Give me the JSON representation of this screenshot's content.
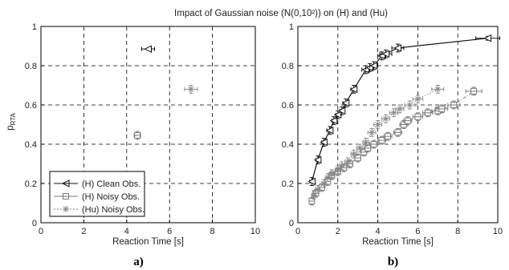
{
  "title": "Impact of Gaussian noise (N(0,10²)) on (H) and (Hu)",
  "ylabel_main": "p",
  "ylabel_sub": "RTA",
  "colors": {
    "clean": "#111111",
    "noisy_h": "#7a7a7a",
    "noisy_hu": "#8a8a8a",
    "grid": "#000000"
  },
  "legend": {
    "items": [
      {
        "marker": "left-triangle",
        "label": "(H) Clean Obs."
      },
      {
        "marker": "square",
        "label": "(H) Noisy Obs."
      },
      {
        "marker": "asterisk",
        "label": "(Hu) Noisy Obs."
      }
    ]
  },
  "chart_data": [
    {
      "type": "scatter",
      "panel_label": "a)",
      "xlabel": "Reaction Time [s]",
      "ylabel": "p_RTA",
      "xlim": [
        0,
        10
      ],
      "ylim": [
        0,
        1
      ],
      "xticks": [
        "0",
        "2",
        "4",
        "6",
        "8",
        "10"
      ],
      "yticks": [
        "0",
        "0.2",
        "0.4",
        "0.6",
        "0.8",
        "1"
      ],
      "grid": true,
      "legend_position": "bottom-left",
      "series": [
        {
          "name": "(H) Clean Obs.",
          "marker": "left-triangle",
          "points": [
            {
              "x": 5.0,
              "y": 0.885,
              "xerr": 0.3,
              "yerr": 0.0
            }
          ]
        },
        {
          "name": "(H) Noisy Obs.",
          "marker": "square",
          "points": [
            {
              "x": 4.5,
              "y": 0.445,
              "xerr": 0.15,
              "yerr": 0.02
            }
          ]
        },
        {
          "name": "(Hu) Noisy Obs.",
          "marker": "asterisk",
          "points": [
            {
              "x": 7.0,
              "y": 0.68,
              "xerr": 0.3,
              "yerr": 0.02
            }
          ]
        }
      ]
    },
    {
      "type": "line",
      "panel_label": "b)",
      "xlabel": "Reaction Time [s]",
      "ylabel": "",
      "xlim": [
        0,
        10
      ],
      "ylim": [
        0,
        1
      ],
      "xticks": [
        "0",
        "2",
        "4",
        "6",
        "8",
        "10"
      ],
      "yticks": [
        "0",
        "0.2",
        "0.4",
        "0.6",
        "0.8",
        "1"
      ],
      "grid": true,
      "series": [
        {
          "name": "(H) Clean Obs.",
          "marker": "left-triangle",
          "linestyle": "solid",
          "x": [
            0.7,
            1.0,
            1.3,
            1.6,
            1.8,
            2.0,
            2.2,
            2.4,
            2.8,
            3.4,
            3.6,
            3.8,
            4.2,
            4.4,
            5.0,
            9.5
          ],
          "y": [
            0.21,
            0.32,
            0.41,
            0.47,
            0.52,
            0.55,
            0.57,
            0.61,
            0.68,
            0.78,
            0.79,
            0.8,
            0.85,
            0.86,
            0.89,
            0.94
          ],
          "xerr": [
            0.1,
            0.1,
            0.1,
            0.15,
            0.1,
            0.1,
            0.1,
            0.15,
            0.15,
            0.2,
            0.2,
            0.2,
            0.2,
            0.3,
            0.3,
            0.6
          ],
          "yerr": [
            0.02,
            0.02,
            0.02,
            0.02,
            0.02,
            0.02,
            0.02,
            0.02,
            0.02,
            0.02,
            0.02,
            0.02,
            0.02,
            0.02,
            0.02,
            0.01
          ]
        },
        {
          "name": "(H) Noisy Obs.",
          "marker": "square",
          "linestyle": "dashdot",
          "x": [
            0.7,
            0.9,
            1.2,
            1.5,
            1.7,
            2.0,
            2.3,
            2.6,
            3.0,
            3.3,
            3.5,
            3.8,
            4.2,
            4.5,
            5.0,
            5.3,
            5.5,
            6.0,
            6.5,
            7.0,
            7.2,
            7.8,
            8.8
          ],
          "y": [
            0.11,
            0.15,
            0.18,
            0.21,
            0.24,
            0.26,
            0.28,
            0.3,
            0.33,
            0.36,
            0.38,
            0.4,
            0.42,
            0.44,
            0.46,
            0.5,
            0.52,
            0.54,
            0.56,
            0.57,
            0.58,
            0.6,
            0.67
          ],
          "xerr": [
            0.1,
            0.1,
            0.1,
            0.1,
            0.1,
            0.1,
            0.15,
            0.15,
            0.15,
            0.15,
            0.15,
            0.2,
            0.2,
            0.2,
            0.2,
            0.2,
            0.2,
            0.25,
            0.25,
            0.3,
            0.3,
            0.3,
            0.4
          ],
          "yerr": [
            0.02,
            0.02,
            0.02,
            0.02,
            0.02,
            0.02,
            0.02,
            0.02,
            0.02,
            0.02,
            0.02,
            0.02,
            0.02,
            0.02,
            0.02,
            0.02,
            0.02,
            0.02,
            0.02,
            0.02,
            0.02,
            0.02,
            0.02
          ]
        },
        {
          "name": "(Hu) Noisy Obs.",
          "marker": "asterisk",
          "linestyle": "dotted",
          "x": [
            0.8,
            1.0,
            1.3,
            1.5,
            1.7,
            2.0,
            2.2,
            2.5,
            2.8,
            3.1,
            3.4,
            3.7,
            4.0,
            4.4,
            4.8,
            5.1,
            5.6,
            6.0,
            7.0
          ],
          "y": [
            0.14,
            0.17,
            0.2,
            0.23,
            0.25,
            0.27,
            0.29,
            0.31,
            0.35,
            0.38,
            0.41,
            0.46,
            0.5,
            0.53,
            0.56,
            0.58,
            0.6,
            0.63,
            0.68
          ],
          "xerr": [
            0.1,
            0.1,
            0.1,
            0.1,
            0.1,
            0.1,
            0.1,
            0.15,
            0.15,
            0.15,
            0.15,
            0.2,
            0.2,
            0.2,
            0.2,
            0.2,
            0.25,
            0.25,
            0.3
          ],
          "yerr": [
            0.02,
            0.02,
            0.02,
            0.02,
            0.02,
            0.02,
            0.02,
            0.02,
            0.02,
            0.02,
            0.02,
            0.02,
            0.02,
            0.02,
            0.02,
            0.02,
            0.02,
            0.02,
            0.02
          ]
        }
      ]
    }
  ]
}
